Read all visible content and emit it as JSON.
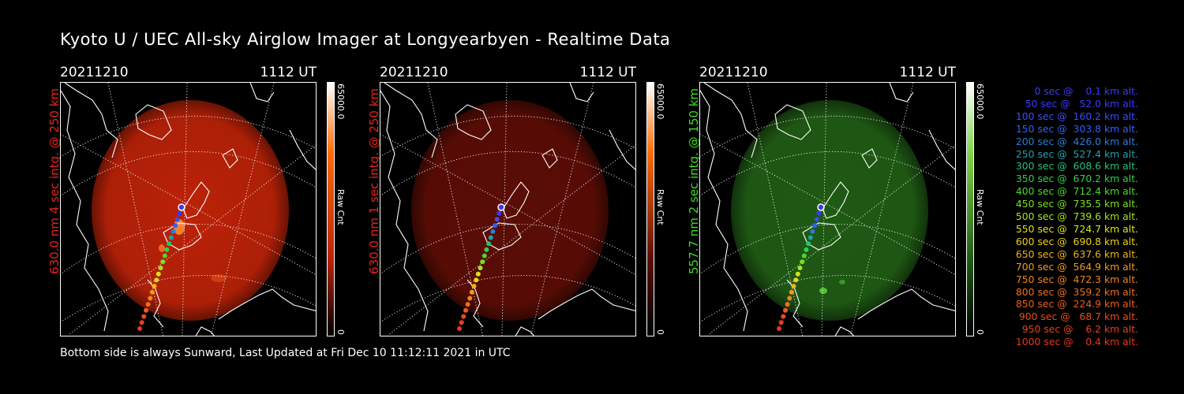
{
  "title": "Kyoto U / UEC All-sky Airglow Imager at Longyearbyen - Realtime Data",
  "footer": "Bottom side is always Sunward, Last Updated at Fri Dec 10 11:12:11 2021 in UTC",
  "panels": [
    {
      "date": "20211210",
      "time": "1112 UT",
      "label": "630.0 nm 4 sec intg. @ 250 km",
      "label_color": "#e8231c",
      "cmax": "65000.0",
      "cmin": "0",
      "cunit": "Raw Cnt",
      "glow": "#bb2208",
      "glow_opacity": 0.92,
      "bar_top": "#ff6a00"
    },
    {
      "date": "20211210",
      "time": "1112 UT",
      "label": "630.0 nm 1 sec intg. @ 250 km",
      "label_color": "#e8231c",
      "cmax": "65000.0",
      "cmin": "0",
      "cunit": "Raw Cnt",
      "glow": "#5a0d05",
      "glow_opacity": 0.95,
      "bar_top": "#ff6a00"
    },
    {
      "date": "20211210",
      "time": "1112 UT",
      "label": "557.7 nm 2 sec intg. @ 150 km",
      "label_color": "#3ddc20",
      "cmax": "65000.0",
      "cmin": "0",
      "cunit": "Raw Cnt",
      "glow": "#1f5a14",
      "glow_opacity": 0.95,
      "bar_top": "#7fd34a"
    }
  ],
  "legend": [
    {
      "text": "   0 sec @    0.1 km alt.",
      "color": "#3a3aff"
    },
    {
      "text": "  50 sec @   52.0 km alt.",
      "color": "#3a3aff"
    },
    {
      "text": " 100 sec @  160.2 km alt.",
      "color": "#3a4cff"
    },
    {
      "text": " 150 sec @  303.8 km alt.",
      "color": "#3060ff"
    },
    {
      "text": " 200 sec @  426.0 km alt.",
      "color": "#2a7cd8"
    },
    {
      "text": " 250 sec @  527.4 km alt.",
      "color": "#21a0a8"
    },
    {
      "text": " 300 sec @  608.6 km alt.",
      "color": "#22c27a"
    },
    {
      "text": " 350 sec @  670.2 km alt.",
      "color": "#2ed24a"
    },
    {
      "text": " 400 sec @  712.4 km alt.",
      "color": "#49dc28"
    },
    {
      "text": " 450 sec @  735.5 km alt.",
      "color": "#7be020"
    },
    {
      "text": " 500 sec @  739.6 km alt.",
      "color": "#a8e41c"
    },
    {
      "text": " 550 sec @  724.7 km alt.",
      "color": "#d8e41a"
    },
    {
      "text": " 600 sec @  690.8 km alt.",
      "color": "#f0d21a"
    },
    {
      "text": " 650 sec @  637.6 km alt.",
      "color": "#f2b418"
    },
    {
      "text": " 700 sec @  564.9 km alt.",
      "color": "#f29a18"
    },
    {
      "text": " 750 sec @  472.3 km alt.",
      "color": "#f08418"
    },
    {
      "text": " 800 sec @  359.2 km alt.",
      "color": "#ee7018"
    },
    {
      "text": " 850 sec @  224.9 km alt.",
      "color": "#ec5e18"
    },
    {
      "text": " 900 sec @   68.7 km alt.",
      "color": "#ea4c1a"
    },
    {
      "text": " 950 sec @    6.2 km alt.",
      "color": "#e8401a"
    },
    {
      "text": "1000 sec @    0.4 km alt.",
      "color": "#e6361c"
    }
  ]
}
